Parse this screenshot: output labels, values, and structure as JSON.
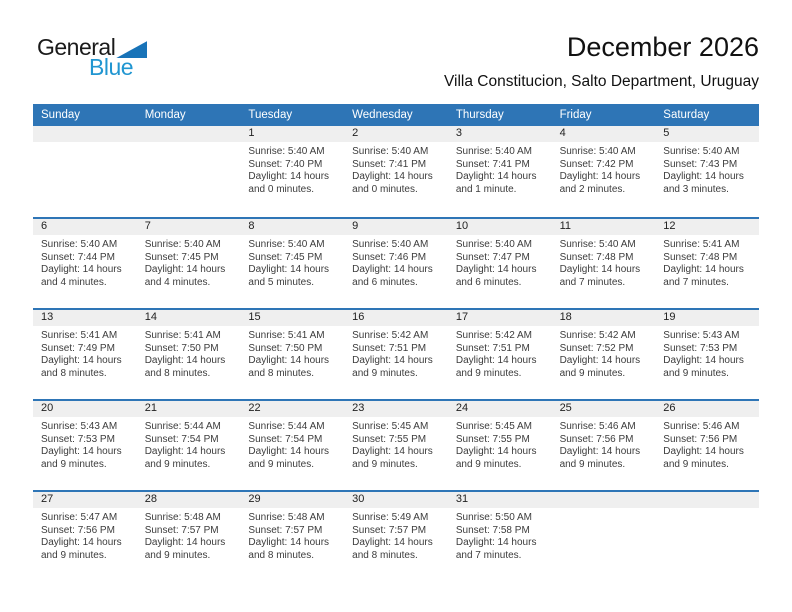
{
  "logo": {
    "part1": "General",
    "part2": "Blue"
  },
  "header": {
    "title": "December 2026",
    "subtitle": "Villa Constitucion, Salto Department, Uruguay"
  },
  "colors": {
    "header_bar_blue": "#2E75B6",
    "week_separator_blue": "#2E75B6",
    "day_number_band_gray": "#EFEFEF",
    "logo_text_blue": "#2196D1",
    "logo_triangle_blue": "#1873B8"
  },
  "calendar": {
    "day_headers": [
      "Sunday",
      "Monday",
      "Tuesday",
      "Wednesday",
      "Thursday",
      "Friday",
      "Saturday"
    ],
    "weeks": [
      [
        null,
        null,
        {
          "num": "1",
          "lines": [
            "Sunrise: 5:40 AM",
            "Sunset: 7:40 PM",
            "Daylight: 14 hours",
            "and 0 minutes."
          ]
        },
        {
          "num": "2",
          "lines": [
            "Sunrise: 5:40 AM",
            "Sunset: 7:41 PM",
            "Daylight: 14 hours",
            "and 0 minutes."
          ]
        },
        {
          "num": "3",
          "lines": [
            "Sunrise: 5:40 AM",
            "Sunset: 7:41 PM",
            "Daylight: 14 hours",
            "and 1 minute."
          ]
        },
        {
          "num": "4",
          "lines": [
            "Sunrise: 5:40 AM",
            "Sunset: 7:42 PM",
            "Daylight: 14 hours",
            "and 2 minutes."
          ]
        },
        {
          "num": "5",
          "lines": [
            "Sunrise: 5:40 AM",
            "Sunset: 7:43 PM",
            "Daylight: 14 hours",
            "and 3 minutes."
          ]
        }
      ],
      [
        {
          "num": "6",
          "lines": [
            "Sunrise: 5:40 AM",
            "Sunset: 7:44 PM",
            "Daylight: 14 hours",
            "and 4 minutes."
          ]
        },
        {
          "num": "7",
          "lines": [
            "Sunrise: 5:40 AM",
            "Sunset: 7:45 PM",
            "Daylight: 14 hours",
            "and 4 minutes."
          ]
        },
        {
          "num": "8",
          "lines": [
            "Sunrise: 5:40 AM",
            "Sunset: 7:45 PM",
            "Daylight: 14 hours",
            "and 5 minutes."
          ]
        },
        {
          "num": "9",
          "lines": [
            "Sunrise: 5:40 AM",
            "Sunset: 7:46 PM",
            "Daylight: 14 hours",
            "and 6 minutes."
          ]
        },
        {
          "num": "10",
          "lines": [
            "Sunrise: 5:40 AM",
            "Sunset: 7:47 PM",
            "Daylight: 14 hours",
            "and 6 minutes."
          ]
        },
        {
          "num": "11",
          "lines": [
            "Sunrise: 5:40 AM",
            "Sunset: 7:48 PM",
            "Daylight: 14 hours",
            "and 7 minutes."
          ]
        },
        {
          "num": "12",
          "lines": [
            "Sunrise: 5:41 AM",
            "Sunset: 7:48 PM",
            "Daylight: 14 hours",
            "and 7 minutes."
          ]
        }
      ],
      [
        {
          "num": "13",
          "lines": [
            "Sunrise: 5:41 AM",
            "Sunset: 7:49 PM",
            "Daylight: 14 hours",
            "and 8 minutes."
          ]
        },
        {
          "num": "14",
          "lines": [
            "Sunrise: 5:41 AM",
            "Sunset: 7:50 PM",
            "Daylight: 14 hours",
            "and 8 minutes."
          ]
        },
        {
          "num": "15",
          "lines": [
            "Sunrise: 5:41 AM",
            "Sunset: 7:50 PM",
            "Daylight: 14 hours",
            "and 8 minutes."
          ]
        },
        {
          "num": "16",
          "lines": [
            "Sunrise: 5:42 AM",
            "Sunset: 7:51 PM",
            "Daylight: 14 hours",
            "and 9 minutes."
          ]
        },
        {
          "num": "17",
          "lines": [
            "Sunrise: 5:42 AM",
            "Sunset: 7:51 PM",
            "Daylight: 14 hours",
            "and 9 minutes."
          ]
        },
        {
          "num": "18",
          "lines": [
            "Sunrise: 5:42 AM",
            "Sunset: 7:52 PM",
            "Daylight: 14 hours",
            "and 9 minutes."
          ]
        },
        {
          "num": "19",
          "lines": [
            "Sunrise: 5:43 AM",
            "Sunset: 7:53 PM",
            "Daylight: 14 hours",
            "and 9 minutes."
          ]
        }
      ],
      [
        {
          "num": "20",
          "lines": [
            "Sunrise: 5:43 AM",
            "Sunset: 7:53 PM",
            "Daylight: 14 hours",
            "and 9 minutes."
          ]
        },
        {
          "num": "21",
          "lines": [
            "Sunrise: 5:44 AM",
            "Sunset: 7:54 PM",
            "Daylight: 14 hours",
            "and 9 minutes."
          ]
        },
        {
          "num": "22",
          "lines": [
            "Sunrise: 5:44 AM",
            "Sunset: 7:54 PM",
            "Daylight: 14 hours",
            "and 9 minutes."
          ]
        },
        {
          "num": "23",
          "lines": [
            "Sunrise: 5:45 AM",
            "Sunset: 7:55 PM",
            "Daylight: 14 hours",
            "and 9 minutes."
          ]
        },
        {
          "num": "24",
          "lines": [
            "Sunrise: 5:45 AM",
            "Sunset: 7:55 PM",
            "Daylight: 14 hours",
            "and 9 minutes."
          ]
        },
        {
          "num": "25",
          "lines": [
            "Sunrise: 5:46 AM",
            "Sunset: 7:56 PM",
            "Daylight: 14 hours",
            "and 9 minutes."
          ]
        },
        {
          "num": "26",
          "lines": [
            "Sunrise: 5:46 AM",
            "Sunset: 7:56 PM",
            "Daylight: 14 hours",
            "and 9 minutes."
          ]
        }
      ],
      [
        {
          "num": "27",
          "lines": [
            "Sunrise: 5:47 AM",
            "Sunset: 7:56 PM",
            "Daylight: 14 hours",
            "and 9 minutes."
          ]
        },
        {
          "num": "28",
          "lines": [
            "Sunrise: 5:48 AM",
            "Sunset: 7:57 PM",
            "Daylight: 14 hours",
            "and 9 minutes."
          ]
        },
        {
          "num": "29",
          "lines": [
            "Sunrise: 5:48 AM",
            "Sunset: 7:57 PM",
            "Daylight: 14 hours",
            "and 8 minutes."
          ]
        },
        {
          "num": "30",
          "lines": [
            "Sunrise: 5:49 AM",
            "Sunset: 7:57 PM",
            "Daylight: 14 hours",
            "and 8 minutes."
          ]
        },
        {
          "num": "31",
          "lines": [
            "Sunrise: 5:50 AM",
            "Sunset: 7:58 PM",
            "Daylight: 14 hours",
            "and 7 minutes."
          ]
        },
        null,
        null
      ]
    ]
  }
}
